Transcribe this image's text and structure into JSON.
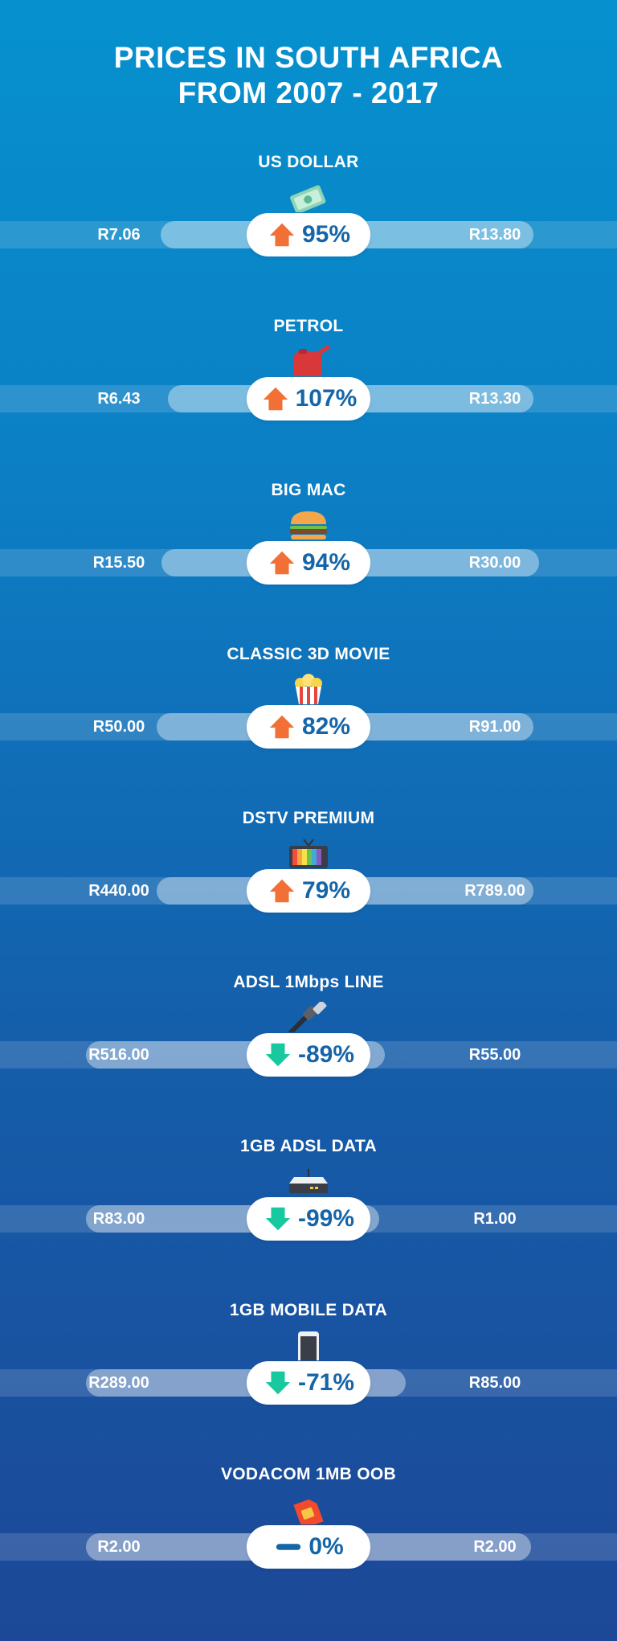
{
  "title_line1": "PRICES IN SOUTH AFRICA",
  "title_line2": "FROM 2007 - 2017",
  "colors": {
    "up": "#f26f35",
    "down": "#18c9a0",
    "flat": "#1565a8"
  },
  "items": [
    {
      "label": "US DOLLAR",
      "icon": "money-icon",
      "from": "R7.06",
      "to": "R13.80",
      "change": "95%",
      "direction": "up"
    },
    {
      "label": "PETROL",
      "icon": "fuel-can-icon",
      "from": "R6.43",
      "to": "R13.30",
      "change": "107%",
      "direction": "up"
    },
    {
      "label": "BIG MAC",
      "icon": "burger-icon",
      "from": "R15.50",
      "to": "R30.00",
      "change": "94%",
      "direction": "up"
    },
    {
      "label": "CLASSIC 3D MOVIE",
      "icon": "popcorn-icon",
      "from": "R50.00",
      "to": "R91.00",
      "change": "82%",
      "direction": "up"
    },
    {
      "label": "DSTV PREMIUM",
      "icon": "tv-icon",
      "from": "R440.00",
      "to": "R789.00",
      "change": "79%",
      "direction": "up"
    },
    {
      "label": "ADSL 1Mbps LINE",
      "icon": "cable-icon",
      "from": "R516.00",
      "to": "R55.00",
      "change": "-89%",
      "direction": "down"
    },
    {
      "label": "1GB ADSL DATA",
      "icon": "router-icon",
      "from": "R83.00",
      "to": "R1.00",
      "change": "-99%",
      "direction": "down"
    },
    {
      "label": "1GB MOBILE DATA",
      "icon": "phone-icon",
      "from": "R289.00",
      "to": "R85.00",
      "change": "-71%",
      "direction": "down"
    },
    {
      "label": "VODACOM 1MB OOB",
      "icon": "sim-card-icon",
      "from": "R2.00",
      "to": "R2.00",
      "change": "0%",
      "direction": "flat"
    }
  ]
}
